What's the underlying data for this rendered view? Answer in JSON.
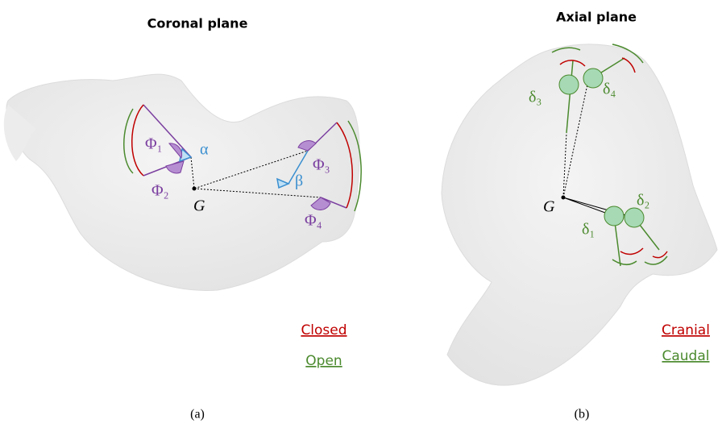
{
  "panels": [
    {
      "title": "Coronal plane",
      "caption": "(a)",
      "labels": [
        "Φ₁",
        "Φ₂",
        "Φ₃",
        "Φ₄",
        "α",
        "β",
        "G"
      ],
      "legend": [
        "Closed",
        "Open"
      ]
    },
    {
      "title": "Axial plane",
      "caption": "(b)",
      "labels": [
        "δ₁",
        "δ₂",
        "δ₃",
        "δ₄",
        "G"
      ],
      "legend": [
        "Cranial",
        "Caudal"
      ]
    }
  ]
}
